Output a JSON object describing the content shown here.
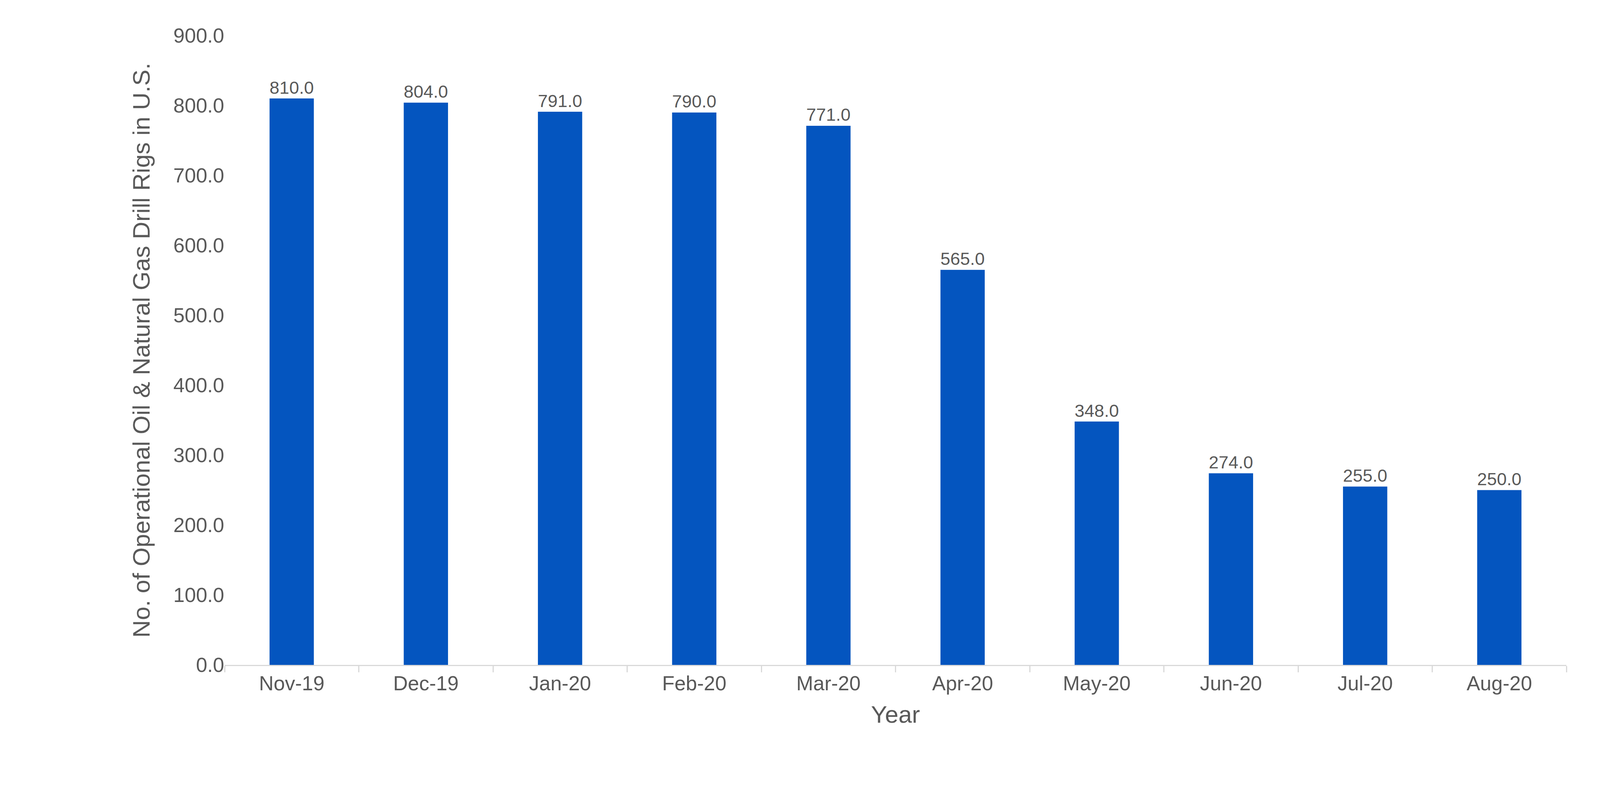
{
  "chart_data": {
    "type": "bar",
    "categories": [
      "Nov-19",
      "Dec-19",
      "Jan-20",
      "Feb-20",
      "Mar-20",
      "Apr-20",
      "May-20",
      "Jun-20",
      "Jul-20",
      "Aug-20"
    ],
    "values": [
      810,
      804,
      791,
      790,
      771,
      565,
      348,
      274,
      255,
      250
    ],
    "value_labels": [
      "810.0",
      "804.0",
      "791.0",
      "790.0",
      "771.0",
      "565.0",
      "348.0",
      "274.0",
      "255.0",
      "250.0"
    ],
    "color": "#0455bf",
    "xlabel": "Year",
    "ylabel": "No. of Operational Oil & Natural Gas Drill Rigs in U.S.",
    "ylim": [
      0,
      900
    ],
    "yticks": [
      {
        "value": 0,
        "label": "0.0"
      },
      {
        "value": 100,
        "label": "100.0"
      },
      {
        "value": 200,
        "label": "200.0"
      },
      {
        "value": 300,
        "label": "300.0"
      },
      {
        "value": 400,
        "label": "400.0"
      },
      {
        "value": 500,
        "label": "500.0"
      },
      {
        "value": 600,
        "label": "600.0"
      },
      {
        "value": 700,
        "label": "700.0"
      },
      {
        "value": 800,
        "label": "800.0"
      },
      {
        "value": 900,
        "label": "900.0"
      }
    ],
    "grid": false,
    "data_labels": true
  }
}
